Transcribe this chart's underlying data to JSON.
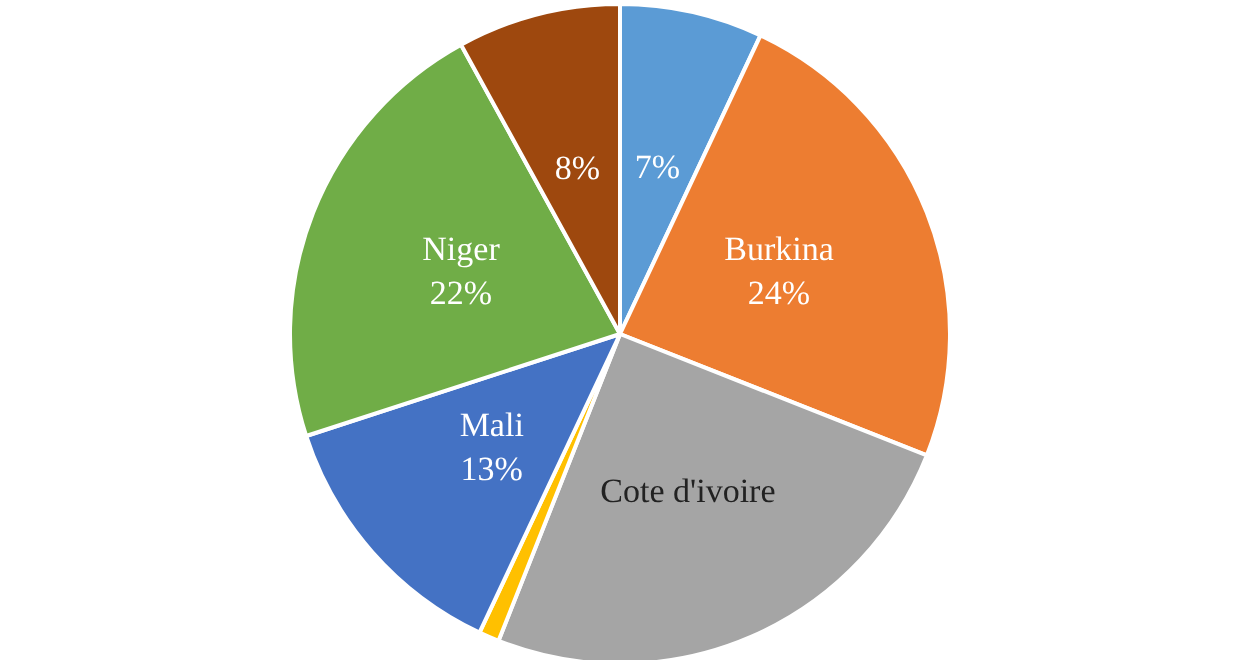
{
  "chart_data": {
    "type": "pie",
    "categories": [
      null,
      "Burkina",
      "Cote d'ivoire",
      null,
      "Mali",
      "Niger",
      null
    ],
    "values": [
      7,
      24,
      25,
      1,
      13,
      22,
      8
    ],
    "value_labels": [
      "7%",
      "24%",
      null,
      null,
      "13%",
      "22%",
      "8%"
    ],
    "colors": [
      "#5b9bd5",
      "#ed7d31",
      "#a5a5a5",
      "#ffc000",
      "#4472c4",
      "#70ad47",
      "#9e480e"
    ],
    "legend": false
  }
}
